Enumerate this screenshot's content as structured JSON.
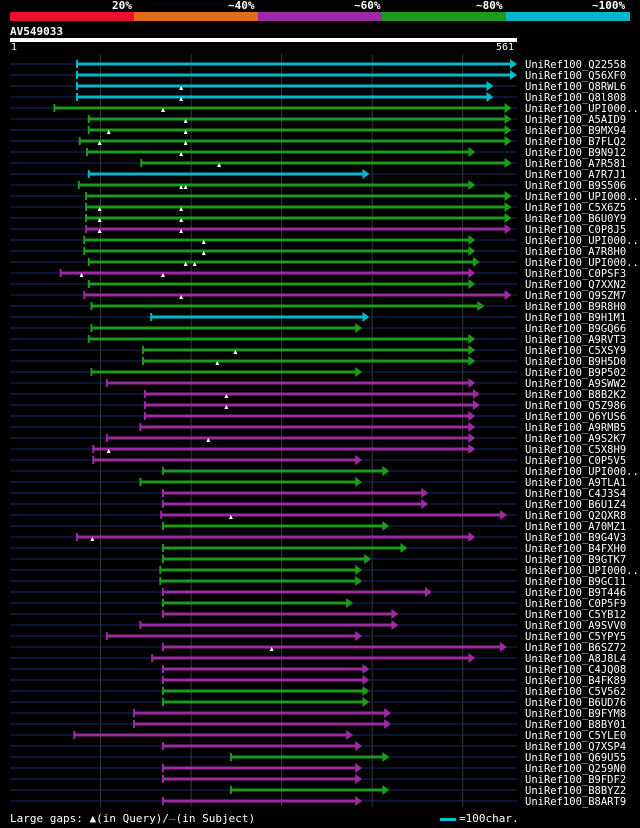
{
  "legend": {
    "labels": [
      "20%",
      "~40%",
      "~60%",
      "~80%",
      "~100%"
    ],
    "colors": [
      "#e8102e",
      "#e06c1c",
      "#9c2aa0",
      "#1c9a1c",
      "#00b8c8"
    ]
  },
  "chart_data": {
    "type": "alignment-map",
    "query": {
      "id": "AV549033",
      "start": "1",
      "end": "561",
      "length": 561
    },
    "bin_labels": [
      "20%",
      "~40%",
      "~60%",
      "~80%",
      "~100%"
    ],
    "hits": [
      {
        "name": "UniRef100_Q22558",
        "start": 75,
        "end": 561,
        "bin": 4,
        "ins": []
      },
      {
        "name": "UniRef100_Q56XF0",
        "start": 75,
        "end": 561,
        "bin": 4,
        "ins": []
      },
      {
        "name": "UniRef100_Q8RWL6",
        "start": 75,
        "end": 535,
        "bin": 4,
        "ins": [
          190
        ]
      },
      {
        "name": "UniRef100_Q8l808",
        "start": 75,
        "end": 535,
        "bin": 4,
        "ins": [
          190
        ]
      },
      {
        "name": "UniRef100_UPI000..",
        "start": 50,
        "end": 555,
        "bin": 3,
        "ins": [
          170
        ]
      },
      {
        "name": "UniRef100_A5AID9",
        "start": 88,
        "end": 555,
        "bin": 3,
        "ins": [
          195
        ]
      },
      {
        "name": "UniRef100_B9MX94",
        "start": 88,
        "end": 555,
        "bin": 3,
        "ins": [
          110,
          195
        ]
      },
      {
        "name": "UniRef100_B7FLQ2",
        "start": 78,
        "end": 555,
        "bin": 3,
        "ins": [
          100,
          195
        ]
      },
      {
        "name": "UniRef100_B9N912",
        "start": 86,
        "end": 515,
        "bin": 3,
        "ins": [
          190
        ]
      },
      {
        "name": "UniRef100_A7R581",
        "start": 146,
        "end": 555,
        "bin": 3,
        "ins": [
          232
        ]
      },
      {
        "name": "UniRef100_A7R7J1",
        "start": 88,
        "end": 398,
        "bin": 4,
        "ins": []
      },
      {
        "name": "UniRef100_B9S506",
        "start": 77,
        "end": 515,
        "bin": 3,
        "ins": [
          190,
          195
        ]
      },
      {
        "name": "UniRef100_UPI000..",
        "start": 85,
        "end": 555,
        "bin": 3,
        "ins": []
      },
      {
        "name": "UniRef100_C5X6Z5",
        "start": 85,
        "end": 555,
        "bin": 3,
        "ins": [
          100,
          190
        ]
      },
      {
        "name": "UniRef100_B6U0Y9",
        "start": 85,
        "end": 555,
        "bin": 3,
        "ins": [
          100,
          190
        ]
      },
      {
        "name": "UniRef100_C0P8J5",
        "start": 85,
        "end": 555,
        "bin": 2,
        "ins": [
          100,
          190
        ]
      },
      {
        "name": "UniRef100_UPI000..",
        "start": 83,
        "end": 515,
        "bin": 3,
        "ins": [
          215
        ]
      },
      {
        "name": "UniRef100_A7R8H0",
        "start": 83,
        "end": 515,
        "bin": 3,
        "ins": [
          215
        ]
      },
      {
        "name": "UniRef100_UPI000..",
        "start": 88,
        "end": 520,
        "bin": 3,
        "ins": [
          195,
          205
        ]
      },
      {
        "name": "UniRef100_C0PSF3",
        "start": 57,
        "end": 515,
        "bin": 2,
        "ins": [
          80,
          170
        ]
      },
      {
        "name": "UniRef100_Q7XXN2",
        "start": 88,
        "end": 515,
        "bin": 3,
        "ins": []
      },
      {
        "name": "UniRef100_Q9SZM7",
        "start": 83,
        "end": 555,
        "bin": 2,
        "ins": [
          190
        ]
      },
      {
        "name": "UniRef100_B9R8H0",
        "start": 91,
        "end": 525,
        "bin": 3,
        "ins": []
      },
      {
        "name": "UniRef100_B9H1M1",
        "start": 157,
        "end": 398,
        "bin": 4,
        "ins": []
      },
      {
        "name": "UniRef100_B9GQ66",
        "start": 91,
        "end": 390,
        "bin": 3,
        "ins": []
      },
      {
        "name": "UniRef100_A9RVT3",
        "start": 88,
        "end": 515,
        "bin": 3,
        "ins": []
      },
      {
        "name": "UniRef100_C5XSY9",
        "start": 148,
        "end": 515,
        "bin": 3,
        "ins": [
          250
        ]
      },
      {
        "name": "UniRef100_B9H5D0",
        "start": 148,
        "end": 515,
        "bin": 3,
        "ins": [
          230
        ]
      },
      {
        "name": "UniRef100_B9P502",
        "start": 91,
        "end": 390,
        "bin": 3,
        "ins": []
      },
      {
        "name": "UniRef100_A9SWW2",
        "start": 108,
        "end": 515,
        "bin": 2,
        "ins": []
      },
      {
        "name": "UniRef100_B8B2K2",
        "start": 150,
        "end": 520,
        "bin": 2,
        "ins": [
          240
        ]
      },
      {
        "name": "UniRef100_Q5Z986",
        "start": 150,
        "end": 520,
        "bin": 2,
        "ins": [
          240
        ]
      },
      {
        "name": "UniRef100_Q6YUS6",
        "start": 150,
        "end": 515,
        "bin": 2,
        "ins": []
      },
      {
        "name": "UniRef100_A9RMB5",
        "start": 145,
        "end": 515,
        "bin": 2,
        "ins": []
      },
      {
        "name": "UniRef100_A9S2K7",
        "start": 108,
        "end": 515,
        "bin": 2,
        "ins": [
          220
        ]
      },
      {
        "name": "UniRef100_C5X8H9",
        "start": 93,
        "end": 515,
        "bin": 2,
        "ins": [
          110
        ]
      },
      {
        "name": "UniRef100_C0P5V5",
        "start": 93,
        "end": 390,
        "bin": 2,
        "ins": []
      },
      {
        "name": "UniRef100_UPI000..",
        "start": 170,
        "end": 420,
        "bin": 3,
        "ins": []
      },
      {
        "name": "UniRef100_A9TLA1",
        "start": 145,
        "end": 390,
        "bin": 3,
        "ins": []
      },
      {
        "name": "UniRef100_C4J3S4",
        "start": 170,
        "end": 463,
        "bin": 2,
        "ins": []
      },
      {
        "name": "UniRef100_B6U1Z4",
        "start": 170,
        "end": 463,
        "bin": 2,
        "ins": []
      },
      {
        "name": "UniRef100_Q2QXR8",
        "start": 168,
        "end": 550,
        "bin": 2,
        "ins": [
          245
        ]
      },
      {
        "name": "UniRef100_A70MZ1",
        "start": 170,
        "end": 420,
        "bin": 3,
        "ins": []
      },
      {
        "name": "UniRef100_B9G4V3",
        "start": 75,
        "end": 515,
        "bin": 2,
        "ins": [
          92
        ]
      },
      {
        "name": "UniRef100_B4FXH0",
        "start": 170,
        "end": 440,
        "bin": 3,
        "ins": []
      },
      {
        "name": "UniRef100_B9GTK7",
        "start": 170,
        "end": 400,
        "bin": 3,
        "ins": []
      },
      {
        "name": "UniRef100_UPI000..",
        "start": 167,
        "end": 390,
        "bin": 3,
        "ins": []
      },
      {
        "name": "UniRef100_B9GC11",
        "start": 167,
        "end": 390,
        "bin": 3,
        "ins": []
      },
      {
        "name": "UniRef100_B9T446",
        "start": 170,
        "end": 467,
        "bin": 2,
        "ins": []
      },
      {
        "name": "UniRef100_C0P5F9",
        "start": 170,
        "end": 380,
        "bin": 3,
        "ins": []
      },
      {
        "name": "UniRef100_C5YB12",
        "start": 170,
        "end": 430,
        "bin": 2,
        "ins": []
      },
      {
        "name": "UniRef100_A9SVV0",
        "start": 145,
        "end": 430,
        "bin": 2,
        "ins": []
      },
      {
        "name": "UniRef100_C5YPY5",
        "start": 108,
        "end": 390,
        "bin": 2,
        "ins": []
      },
      {
        "name": "UniRef100_B6SZ72",
        "start": 170,
        "end": 550,
        "bin": 2,
        "ins": [
          290
        ]
      },
      {
        "name": "UniRef100_A8J8L4",
        "start": 158,
        "end": 515,
        "bin": 2,
        "ins": []
      },
      {
        "name": "UniRef100_C4JQ08",
        "start": 170,
        "end": 398,
        "bin": 2,
        "ins": []
      },
      {
        "name": "UniRef100_B4FK89",
        "start": 170,
        "end": 398,
        "bin": 2,
        "ins": []
      },
      {
        "name": "UniRef100_C5V562",
        "start": 170,
        "end": 398,
        "bin": 3,
        "ins": []
      },
      {
        "name": "UniRef100_B6UD76",
        "start": 170,
        "end": 398,
        "bin": 3,
        "ins": []
      },
      {
        "name": "UniRef100_B9FYM8",
        "start": 138,
        "end": 422,
        "bin": 2,
        "ins": []
      },
      {
        "name": "UniRef100_B8BY01",
        "start": 138,
        "end": 422,
        "bin": 2,
        "ins": []
      },
      {
        "name": "UniRef100_C5YLE0",
        "start": 72,
        "end": 380,
        "bin": 2,
        "ins": []
      },
      {
        "name": "UniRef100_Q7XSP4",
        "start": 170,
        "end": 390,
        "bin": 2,
        "ins": []
      },
      {
        "name": "UniRef100_Q69U55",
        "start": 245,
        "end": 420,
        "bin": 3,
        "ins": []
      },
      {
        "name": "UniRef100_Q259N0",
        "start": 170,
        "end": 390,
        "bin": 2,
        "ins": []
      },
      {
        "name": "UniRef100_B9FDF2",
        "start": 170,
        "end": 390,
        "bin": 2,
        "ins": []
      },
      {
        "name": "UniRef100_B8BYZ2",
        "start": 245,
        "end": 420,
        "bin": 3,
        "ins": []
      },
      {
        "name": "UniRef100_B8ART9",
        "start": 170,
        "end": 390,
        "bin": 2,
        "ins": []
      }
    ]
  },
  "footer": {
    "gaps_label": "Large gaps:",
    "in_query": "(in Query)/",
    "in_subject": "(in Subject)",
    "scale_label": "=100char."
  }
}
